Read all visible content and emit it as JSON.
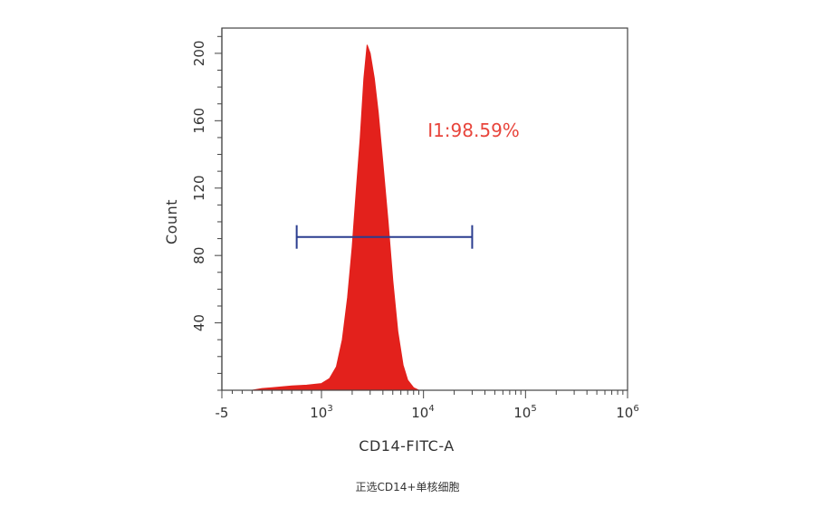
{
  "chart_data": {
    "type": "area",
    "title": "",
    "xlabel": "CD14-FITC-A",
    "ylabel": "Count",
    "xscale": "biexponential",
    "y_ticks": [
      "40",
      "80",
      "120",
      "160",
      "200"
    ],
    "ylim": [
      0,
      215
    ],
    "x_ticks": [
      {
        "base": "-5",
        "exp": ""
      },
      {
        "base": "10",
        "exp": "3"
      },
      {
        "base": "10",
        "exp": "4"
      },
      {
        "base": "10",
        "exp": "5"
      },
      {
        "base": "10",
        "exp": "6"
      }
    ],
    "series": [
      {
        "color": "#e3211c",
        "points": [
          [
            300,
            0
          ],
          [
            400,
            1
          ],
          [
            500,
            1.5
          ],
          [
            600,
            2
          ],
          [
            700,
            2.5
          ],
          [
            850,
            3
          ],
          [
            1000,
            4
          ],
          [
            1200,
            7
          ],
          [
            1400,
            14
          ],
          [
            1600,
            30
          ],
          [
            1800,
            55
          ],
          [
            2000,
            85
          ],
          [
            2200,
            120
          ],
          [
            2400,
            150
          ],
          [
            2600,
            185
          ],
          [
            2800,
            205
          ],
          [
            3000,
            200
          ],
          [
            3300,
            185
          ],
          [
            3600,
            165
          ],
          [
            4000,
            135
          ],
          [
            4500,
            100
          ],
          [
            5000,
            65
          ],
          [
            5600,
            35
          ],
          [
            6300,
            15
          ],
          [
            7000,
            6
          ],
          [
            8000,
            1.5
          ],
          [
            9000,
            0
          ]
        ]
      }
    ],
    "gate": {
      "label": "I1:98.59%",
      "x_range": [
        750,
        30000
      ],
      "y": 91,
      "color": "#2b3d8f"
    },
    "gate_label_color": "#e8453c",
    "grid": false
  },
  "caption": "正选CD14+单核细胞"
}
